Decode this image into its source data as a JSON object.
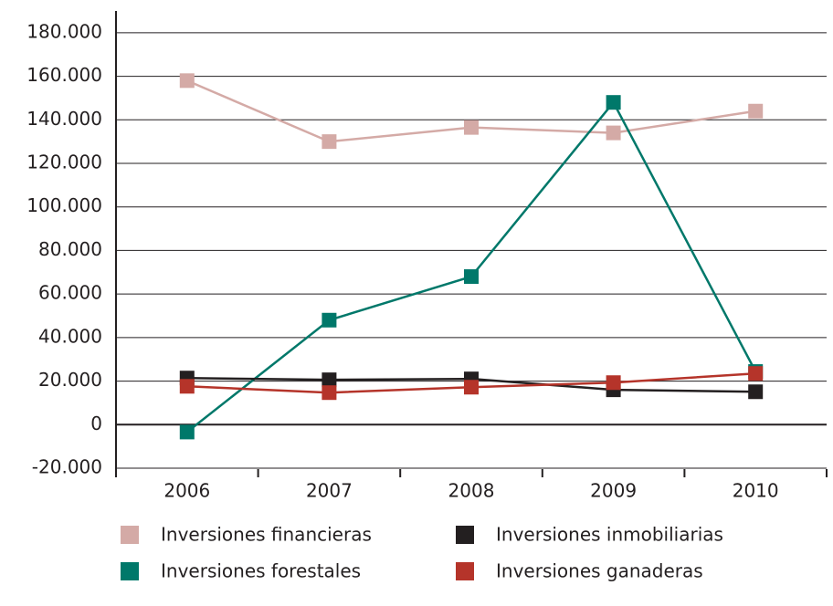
{
  "chart_data": {
    "type": "line",
    "categories": [
      "2006",
      "2007",
      "2008",
      "2009",
      "2010"
    ],
    "series": [
      {
        "name": "Inversiones financieras",
        "color": "#d4aaa6",
        "values": [
          158000,
          130000,
          136500,
          134000,
          144000
        ]
      },
      {
        "name": "Inversiones inmobiliarias",
        "color": "#231f20",
        "values": [
          21400,
          20600,
          21000,
          16000,
          15100
        ]
      },
      {
        "name": "Inversiones forestales",
        "color": "#00786a",
        "values": [
          -3400,
          48000,
          68000,
          148000,
          24400
        ]
      },
      {
        "name": "Inversiones ganaderas",
        "color": "#b5342a",
        "values": [
          17600,
          14700,
          17200,
          19300,
          23500
        ]
      }
    ],
    "ylim": [
      -20000,
      190000
    ],
    "yticks": [
      {
        "value": -20000,
        "label": "-20.000"
      },
      0,
      {
        "value": 20000,
        "label": "20.000"
      },
      {
        "value": 40000,
        "label": "40.000"
      },
      {
        "value": 60000,
        "label": "60.000"
      },
      {
        "value": 80000,
        "label": "80.000"
      },
      {
        "value": 100000,
        "label": "100.000"
      },
      {
        "value": 120000,
        "label": "120.000"
      },
      {
        "value": 140000,
        "label": "140.000"
      },
      {
        "value": 160000,
        "label": "160.000"
      },
      {
        "value": 180000,
        "label": "180.000"
      }
    ],
    "grid": true,
    "legend": "bottom"
  }
}
